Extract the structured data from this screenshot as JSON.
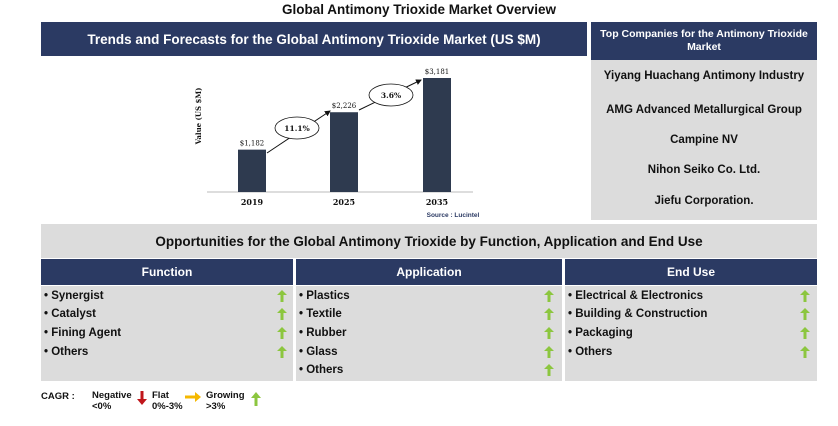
{
  "page": {
    "title": "Global Antimony Trioxide Market Overview"
  },
  "chart_header": "Trends and Forecasts for the Global Antimony Trioxide Market (US $M)",
  "chart_data": {
    "type": "bar",
    "categories": [
      "2019",
      "2025",
      "2035"
    ],
    "values": [
      1182,
      2226,
      3181
    ],
    "value_labels": [
      "$1,182",
      "$2,226",
      "$3,181"
    ],
    "ylabel": "Value (US $M)",
    "source": "Source : Lucintel",
    "bar_color": "#2e3a4f",
    "growth_annotations": [
      "11.1%",
      "3.6%"
    ]
  },
  "companies": {
    "header": "Top Companies for the Antimony Trioxide Market",
    "items": [
      "Yiyang Huachang Antimony Industry",
      "AMG Advanced Metallurgical Group",
      "Campine NV",
      "Nihon Seiko Co. Ltd.",
      "Jiefu Corporation."
    ]
  },
  "opportunities": {
    "title": "Opportunities for the Global Antimony Trioxide by Function, Application and End Use",
    "columns": [
      {
        "header": "Function",
        "items": [
          "• Synergist",
          "• Catalyst",
          "• Fining Agent",
          "• Others"
        ]
      },
      {
        "header": "Application",
        "items": [
          "• Plastics",
          "• Textile",
          "• Rubber",
          "• Glass",
          "• Others"
        ]
      },
      {
        "header": "End Use",
        "items": [
          "• Electrical & Electronics",
          "• Building & Construction",
          "• Packaging",
          "• Others"
        ]
      }
    ]
  },
  "cagr_legend": {
    "label": "CAGR :",
    "negative": {
      "name": "Negative",
      "range": "<0%",
      "icon": "down-arrow-icon",
      "color": "#c0161b"
    },
    "flat": {
      "name": "Flat",
      "range": "0%-3%",
      "icon": "right-arrow-icon",
      "color": "#f5b800"
    },
    "growing": {
      "name": "Growing",
      "range": ">3%",
      "icon": "up-arrow-icon",
      "color": "#8cc63f"
    }
  },
  "colors": {
    "header_bg": "#2b3a63",
    "panel_bg": "#dcdcdc",
    "growth_arrow": "#8cc63f"
  }
}
